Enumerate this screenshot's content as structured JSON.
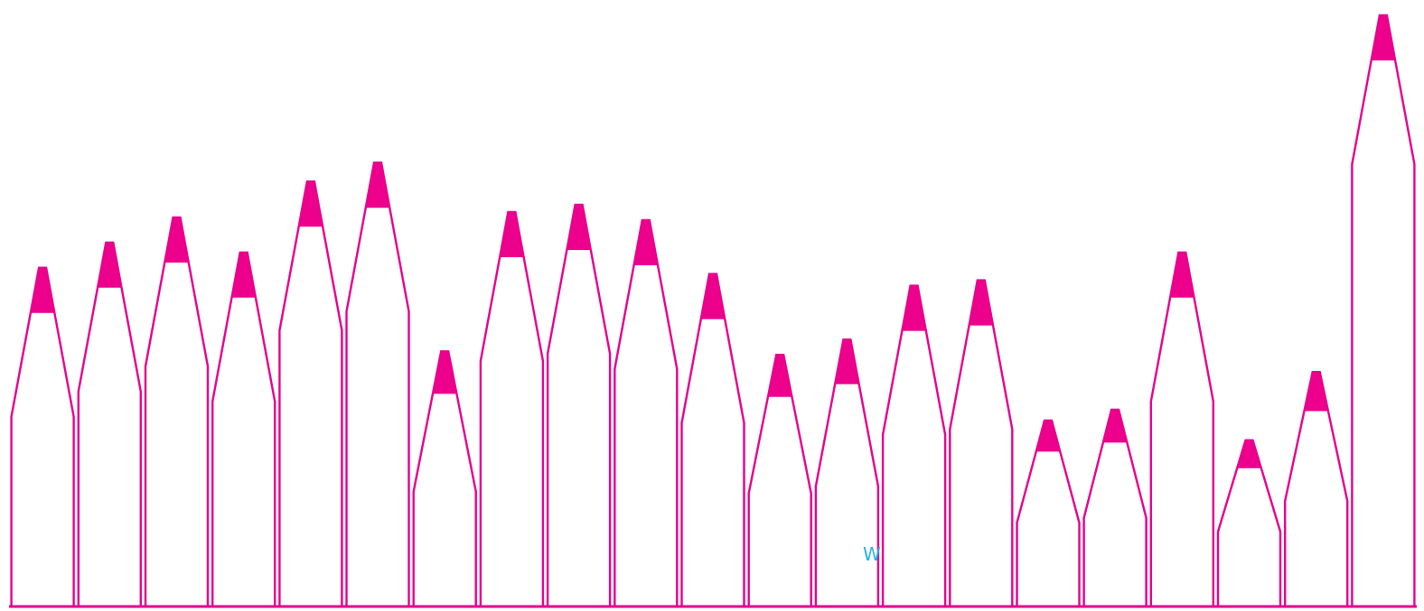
{
  "chart_data": {
    "type": "bar",
    "style": "pencil",
    "values": [
      377,
      405,
      433,
      394,
      473,
      494,
      284,
      439,
      447,
      430,
      370,
      280,
      297,
      357,
      363,
      207,
      219,
      394,
      185,
      261,
      658
    ],
    "ylim": [
      0,
      675
    ],
    "grid": false,
    "legend": "none"
  },
  "colors": {
    "outline": "#e5008c",
    "tip": "#ec008c",
    "fill": "#ffffff",
    "watermark": "#1cb5e0"
  },
  "watermark": {
    "text": "W"
  }
}
